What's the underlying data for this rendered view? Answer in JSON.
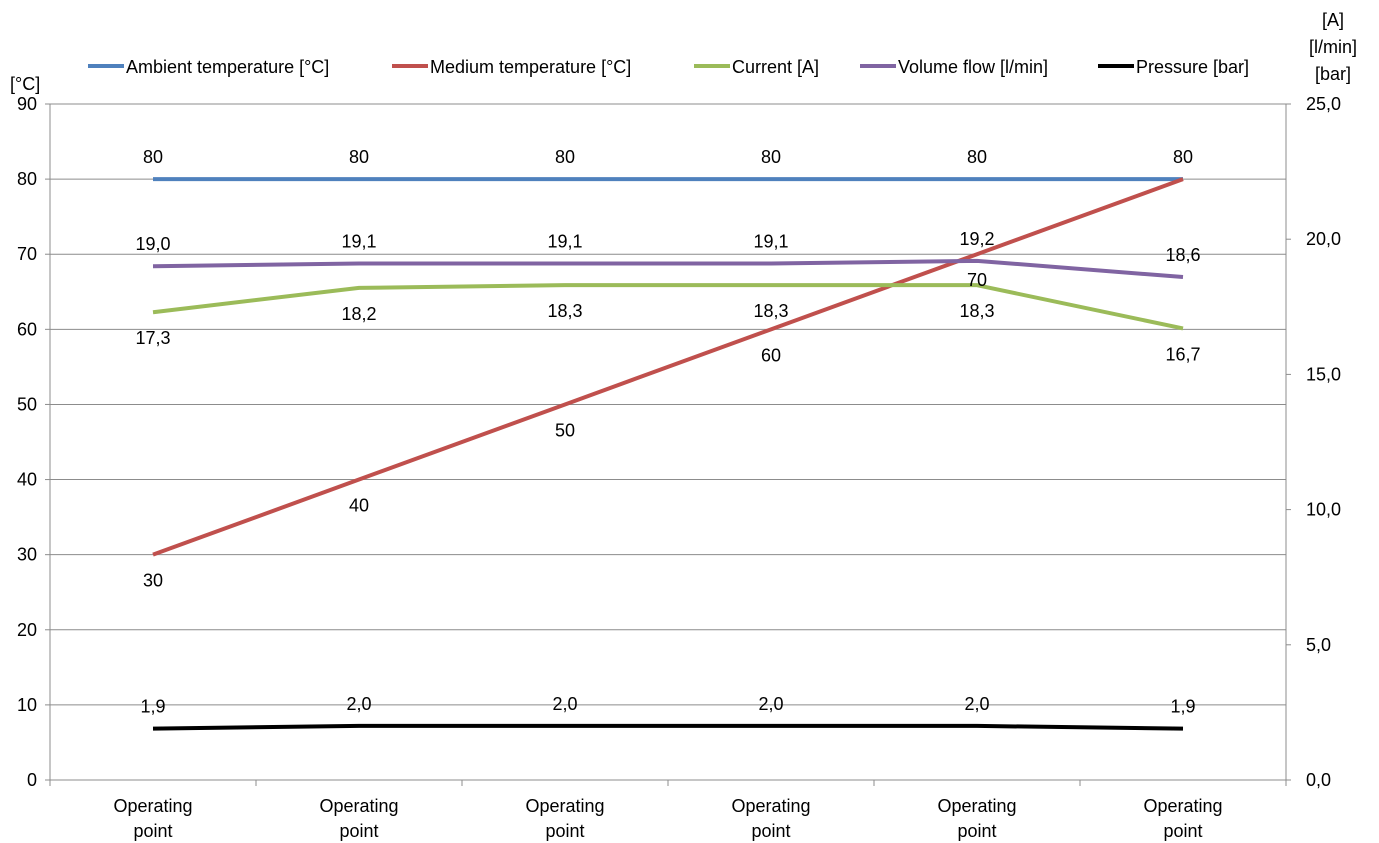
{
  "chart_data": {
    "type": "line",
    "categories": [
      "Operating point",
      "Operating point",
      "Operating point",
      "Operating point",
      "Operating point",
      "Operating point"
    ],
    "left_axis": {
      "unit_label": "[°C]",
      "ylim": [
        0,
        90
      ],
      "ticks": [
        "0",
        "10",
        "20",
        "30",
        "40",
        "50",
        "60",
        "70",
        "80",
        "90"
      ]
    },
    "right_axis": {
      "unit_label_lines": [
        "[A]",
        "[l/min]",
        "[bar]"
      ],
      "ylim": [
        0,
        25
      ],
      "ticks": [
        "0,0",
        "5,0",
        "10,0",
        "15,0",
        "20,0",
        "25,0"
      ]
    },
    "grid": true,
    "legend_position": "top",
    "series": [
      {
        "name": "Ambient temperature [°C]",
        "axis": "left",
        "color": "#4f81bd",
        "values": [
          80,
          80,
          80,
          80,
          80,
          80
        ],
        "labels": [
          "80",
          "80",
          "80",
          "80",
          "80",
          "80"
        ],
        "label_pos": "above"
      },
      {
        "name": "Medium temperature [°C]",
        "axis": "left",
        "color": "#c0504d",
        "values": [
          30,
          40,
          50,
          60,
          70,
          80
        ],
        "labels": [
          "30",
          "40",
          "50",
          "60",
          "70",
          ""
        ],
        "label_pos": "below"
      },
      {
        "name": "Current [A]",
        "axis": "right",
        "color": "#9bbb59",
        "values": [
          17.3,
          18.2,
          18.3,
          18.3,
          18.3,
          16.7
        ],
        "labels": [
          "17,3",
          "18,2",
          "18,3",
          "18,3",
          "18,3",
          "16,7"
        ],
        "label_pos": "below"
      },
      {
        "name": "Volume flow [l/min]",
        "axis": "right",
        "color": "#8064a2",
        "values": [
          19.0,
          19.1,
          19.1,
          19.1,
          19.2,
          18.6
        ],
        "labels": [
          "19,0",
          "19,1",
          "19,1",
          "19,1",
          "19,2",
          "18,6"
        ],
        "label_pos": "above"
      },
      {
        "name": "Pressure [bar]",
        "axis": "right",
        "color": "#000000",
        "values": [
          1.9,
          2.0,
          2.0,
          2.0,
          2.0,
          1.9
        ],
        "labels": [
          "1,9",
          "2,0",
          "2,0",
          "2,0",
          "2,0",
          "1,9"
        ],
        "label_pos": "above"
      }
    ]
  }
}
